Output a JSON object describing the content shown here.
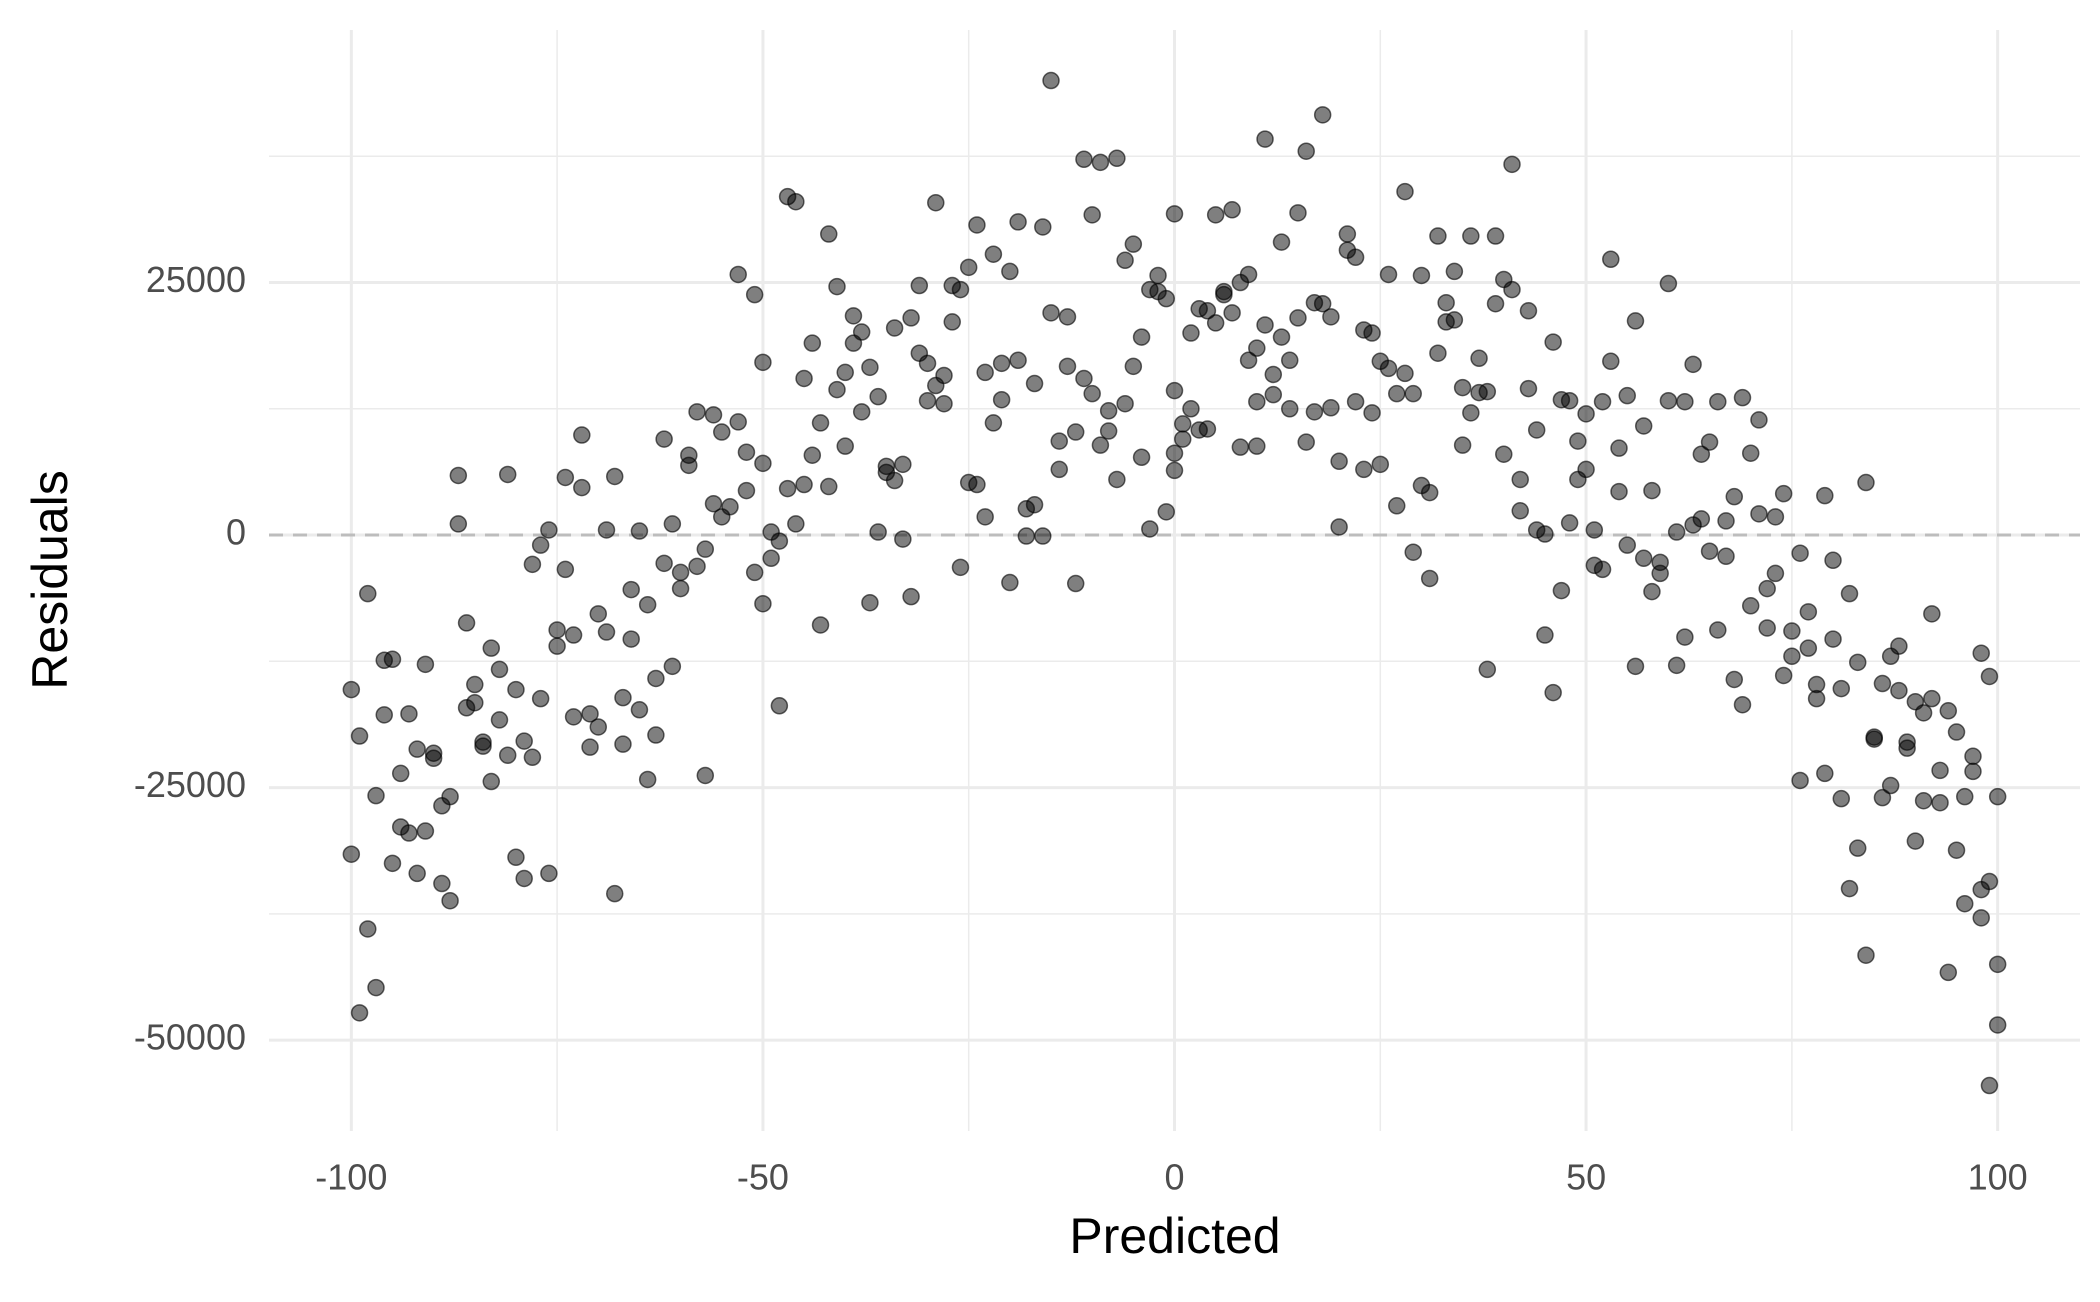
{
  "chart_data": {
    "type": "scatter",
    "x_label": "Predicted",
    "y_label": "Residuals",
    "xlim": [
      -110,
      110
    ],
    "ylim": [
      -59000,
      50000
    ],
    "xticks": [
      -100,
      -50,
      0,
      50,
      100
    ],
    "yticks": [
      -50000,
      -25000,
      0,
      25000
    ],
    "grid": true,
    "hline": 0,
    "color": "#000000",
    "x": [
      -100,
      -100,
      -99,
      -99,
      -98,
      -98,
      -97,
      -97,
      -96,
      -96,
      -95,
      -95,
      -94,
      -94,
      -93,
      -93,
      -92,
      -92,
      -91,
      -91,
      -90,
      -90,
      -89,
      -89,
      -88,
      -88,
      -87,
      -87,
      -86,
      -86,
      -85,
      -85,
      -84,
      -84,
      -83,
      -83,
      -82,
      -82,
      -81,
      -81,
      -80,
      -80,
      -79,
      -79,
      -78,
      -78,
      -77,
      -77,
      -76,
      -76,
      -75,
      -75,
      -74,
      -74,
      -73,
      -73,
      -72,
      -72,
      -71,
      -71,
      -70,
      -70,
      -69,
      -69,
      -68,
      -68,
      -67,
      -67,
      -66,
      -66,
      -65,
      -65,
      -64,
      -64,
      -63,
      -63,
      -62,
      -62,
      -61,
      -61,
      -60,
      -60,
      -59,
      -59,
      -58,
      -58,
      -57,
      -57,
      -56,
      -56,
      -55,
      -55,
      -54,
      -53,
      -53,
      -52,
      -52,
      -51,
      -51,
      -50,
      -50,
      -50,
      -49,
      -49,
      -48,
      -48,
      -47,
      -47,
      -46,
      -46,
      -45,
      -45,
      -44,
      -44,
      -43,
      -43,
      -42,
      -42,
      -41,
      -41,
      -40,
      -40,
      -39,
      -39,
      -38,
      -38,
      -37,
      -37,
      -36,
      -36,
      -35,
      -35,
      -34,
      -34,
      -33,
      -33,
      -32,
      -32,
      -31,
      -31,
      -30,
      -30,
      -29,
      -29,
      -28,
      -28,
      -27,
      -27,
      -26,
      -26,
      -25,
      -25,
      -24,
      -24,
      -23,
      -23,
      -22,
      -22,
      -21,
      -21,
      -20,
      -20,
      -19,
      -19,
      -18,
      -18,
      -17,
      -17,
      -16,
      -16,
      -15,
      -15,
      -14,
      -14,
      -13,
      -13,
      -12,
      -12,
      -11,
      -11,
      -10,
      -10,
      -9,
      -9,
      -8,
      -8,
      -7,
      -7,
      -6,
      -6,
      -5,
      -5,
      -4,
      -4,
      -3,
      -3,
      -2,
      -2,
      -1,
      -1,
      0,
      0,
      0,
      0,
      1,
      1,
      2,
      2,
      3,
      3,
      4,
      4,
      5,
      5,
      6,
      6,
      7,
      7,
      8,
      8,
      9,
      9,
      10,
      10,
      10,
      11,
      11,
      12,
      12,
      13,
      13,
      14,
      14,
      15,
      15,
      16,
      16,
      17,
      17,
      18,
      18,
      19,
      19,
      20,
      20,
      21,
      21,
      22,
      22,
      23,
      23,
      24,
      24,
      25,
      25,
      26,
      26,
      27,
      27,
      28,
      28,
      29,
      29,
      30,
      30,
      31,
      31,
      32,
      32,
      33,
      33,
      34,
      34,
      35,
      35,
      36,
      36,
      37,
      37,
      38,
      38,
      39,
      39,
      40,
      40,
      41,
      41,
      42,
      42,
      43,
      43,
      44,
      44,
      45,
      45,
      46,
      46,
      47,
      47,
      48,
      48,
      49,
      49,
      50,
      50,
      51,
      51,
      52,
      52,
      53,
      53,
      54,
      54,
      55,
      55,
      56,
      56,
      57,
      57,
      58,
      58,
      59,
      59,
      60,
      60,
      61,
      61,
      62,
      62,
      63,
      63,
      64,
      64,
      65,
      65,
      66,
      66,
      67,
      67,
      68,
      68,
      69,
      69,
      70,
      70,
      71,
      71,
      72,
      72,
      73,
      73,
      74,
      74,
      75,
      75,
      76,
      76,
      77,
      77,
      78,
      78,
      79,
      79,
      80,
      80,
      81,
      81,
      82,
      82,
      83,
      83,
      84,
      84,
      85,
      85,
      86,
      86,
      87,
      87,
      88,
      88,
      89,
      89,
      90,
      90,
      91,
      91,
      92,
      92,
      93,
      93,
      94,
      94,
      95,
      95,
      96,
      96,
      97,
      97,
      98,
      98,
      98,
      99,
      99,
      100,
      100,
      100,
      99
    ],
    "values": [
      -15300,
      -31600,
      -19900,
      -47300,
      -39000,
      -5800,
      -44800,
      -25800,
      -17800,
      -12400,
      -32500,
      -12300,
      -28900,
      -23600,
      -17700,
      -29500,
      -33500,
      -21200,
      -29300,
      -12800,
      -21600,
      -22100,
      -34500,
      -26800,
      -25900,
      -36200,
      5900,
      1100,
      -17100,
      -8700,
      -14800,
      -16600,
      -20900,
      -20500,
      -24400,
      -11200,
      -13300,
      -18300,
      6000,
      -21800,
      -31900,
      -15300,
      -34000,
      -20400,
      -2900,
      -22000,
      -1000,
      -16200,
      500,
      -33500,
      -9400,
      -11000,
      -3400,
      5700,
      -9900,
      -18000,
      9900,
      4700,
      -17700,
      -21000,
      -7800,
      -19000,
      500,
      -9600,
      -35500,
      5800,
      -16100,
      -20700,
      -10300,
      -5400,
      400,
      -17300,
      -6900,
      -24200,
      -19800,
      -14200,
      -2800,
      9500,
      1100,
      -13000,
      -5300,
      -3700,
      6900,
      7900,
      -3100,
      12200,
      -23800,
      -1400,
      11900,
      3100,
      10200,
      1800,
      2800,
      25800,
      11200,
      4400,
      8200,
      23800,
      -3700,
      -6800,
      17100,
      7100,
      300,
      -2300,
      -16900,
      -600,
      4600,
      33500,
      1100,
      33000,
      15500,
      5000,
      19000,
      7900,
      11100,
      -8900,
      29800,
      4800,
      24600,
      14400,
      8800,
      16100,
      21700,
      19000,
      20100,
      12200,
      -6700,
      16600,
      300,
      13700,
      6800,
      6200,
      5400,
      20500,
      7000,
      -400,
      21500,
      -6100,
      24700,
      18000,
      13300,
      17000,
      14800,
      32900,
      15800,
      13000,
      21100,
      24700,
      -3200,
      24300,
      26500,
      5200,
      30700,
      5000,
      16100,
      1800,
      11100,
      27800,
      13400,
      17000,
      -4700,
      26100,
      31000,
      17300,
      -100,
      2600,
      3000,
      15000,
      -100,
      30500,
      45000,
      22000,
      6500,
      9300,
      21600,
      16700,
      10200,
      -4800,
      15500,
      37200,
      14000,
      31700,
      8900,
      36900,
      10300,
      12300,
      37300,
      5500,
      27200,
      13000,
      16700,
      28800,
      7700,
      19600,
      24300,
      600,
      25700,
      24100,
      23400,
      2300,
      31800,
      14300,
      8100,
      6400,
      9500,
      11000,
      12500,
      20000,
      10400,
      22400,
      22200,
      10500,
      31700,
      21000,
      23800,
      24100,
      22000,
      32200,
      8700,
      25000,
      25800,
      17300,
      18500,
      13200,
      8800,
      39200,
      20800,
      15900,
      13900,
      29000,
      19600,
      17300,
      12500,
      21500,
      31900,
      9200,
      38000,
      12200,
      23000,
      41600,
      22900,
      21600,
      12600,
      7300,
      800,
      28200,
      29800,
      27500,
      13200,
      20300,
      6500,
      12100,
      20000,
      7000,
      17200,
      25800,
      16500,
      2900,
      14000,
      34000,
      16000,
      14000,
      -1700,
      4900,
      25700,
      -4300,
      4200,
      29600,
      18000,
      23000,
      21100,
      26100,
      21300,
      14600,
      8900,
      29600,
      12100,
      17500,
      14100,
      -13300,
      14200,
      22900,
      29600,
      8000,
      25300,
      24300,
      36700,
      5500,
      2400,
      22200,
      14500,
      500,
      10400,
      -9900,
      100,
      -15600,
      19100,
      -5500,
      13400,
      13300,
      1200,
      9300,
      5500,
      6500,
      12000,
      -3000,
      500,
      13200,
      -3400,
      27300,
      17200,
      4300,
      8600,
      -1000,
      13800,
      -13000,
      21200,
      -2300,
      10800,
      -5600,
      4400,
      -3800,
      -2700,
      24900,
      13300,
      -12900,
      300,
      -10100,
      13200,
      1000,
      16900,
      1600,
      8000,
      9200,
      -1600,
      -9400,
      13200,
      1400,
      -2100,
      -14300,
      3800,
      -16800,
      13600,
      -7000,
      8100,
      11400,
      2100,
      -9200,
      -5300,
      -3800,
      1800,
      -13900,
      4100,
      -9500,
      -12000,
      -24300,
      -1800,
      -7600,
      -11200,
      -14800,
      -16200,
      -23600,
      3900,
      -2500,
      -10300,
      -26100,
      -15200,
      -5800,
      -35000,
      -31000,
      -12600,
      5200,
      -41600,
      -20200,
      -20000,
      -14700,
      -26000,
      -24800,
      -12000,
      -15400,
      -11000,
      -20500,
      -21100,
      -16500,
      -30300,
      -26300,
      -17600,
      -7800,
      -16200,
      -26500,
      -23300,
      -43300,
      -17400,
      -31200,
      -19500,
      -25900,
      -36500,
      -21900,
      -23400,
      -11700,
      -37900,
      -35100,
      -34300,
      -54500,
      -25900,
      -42500,
      -48500,
      -14000
    ]
  }
}
